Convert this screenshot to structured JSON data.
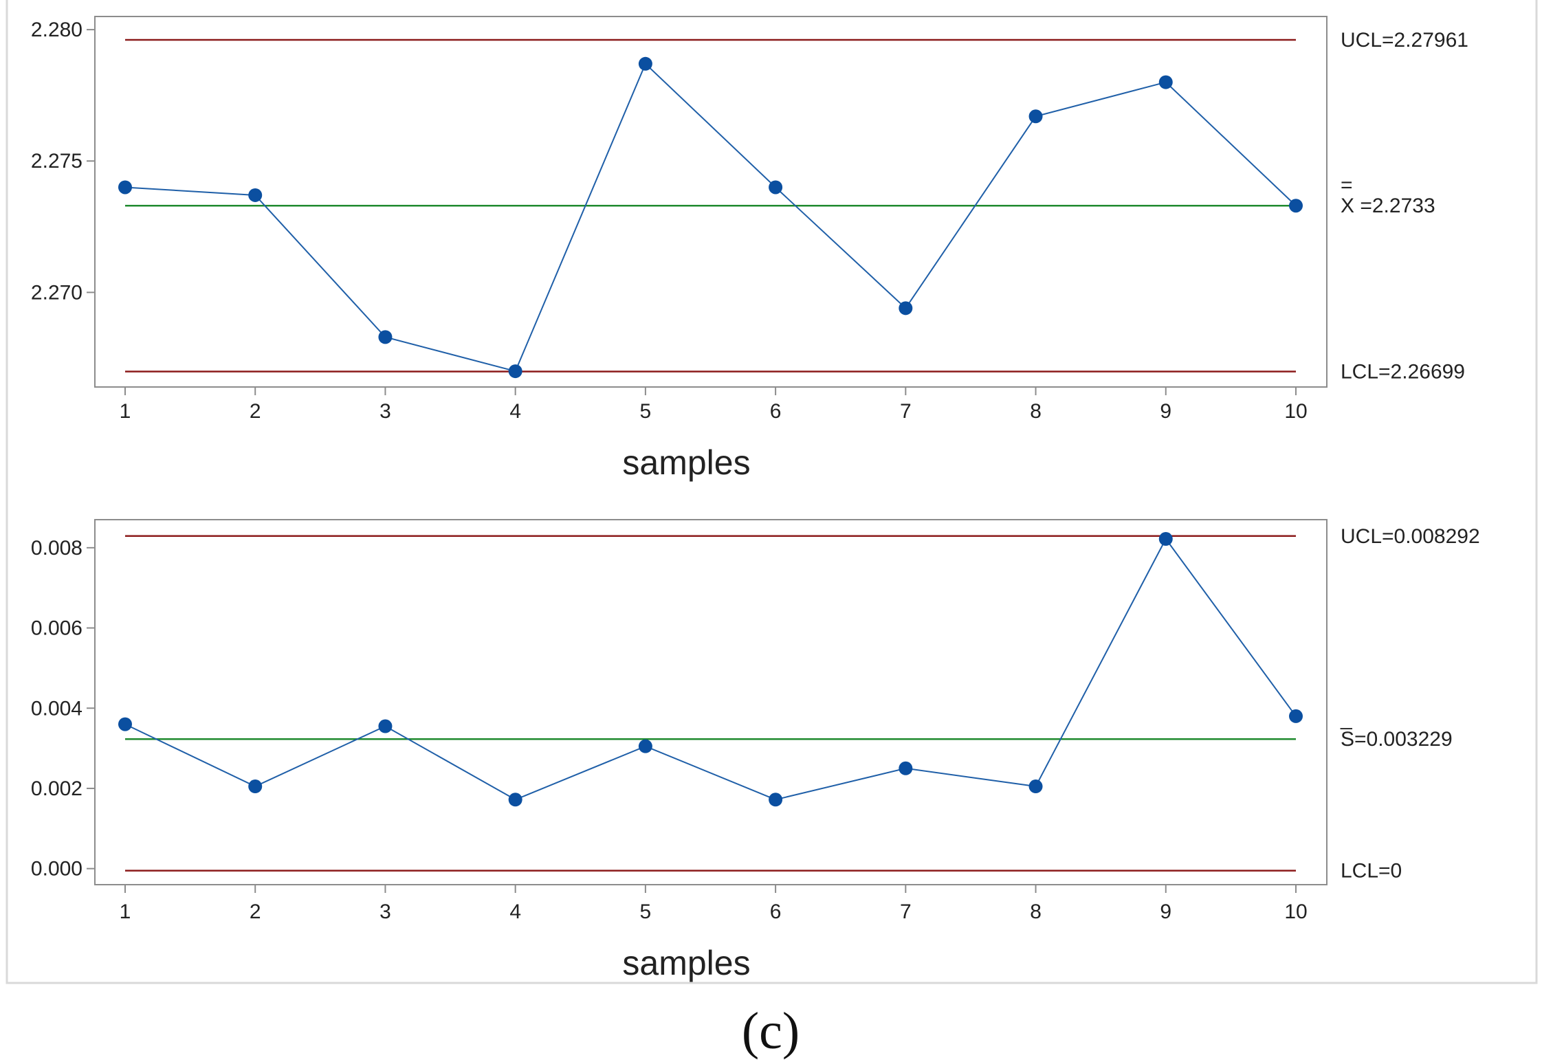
{
  "chart_data": [
    {
      "type": "line",
      "xlabel": "samples",
      "ylabel": "",
      "categories": [
        "1",
        "2",
        "3",
        "4",
        "5",
        "6",
        "7",
        "8",
        "9",
        "10"
      ],
      "y_ticks": [
        "2.270",
        "2.275",
        "2.280"
      ],
      "ylim": [
        2.2664,
        2.2805
      ],
      "series": [
        {
          "values": [
            2.274,
            2.2737,
            2.2683,
            2.267,
            2.2787,
            2.274,
            2.2694,
            2.2767,
            2.278,
            2.2733
          ]
        }
      ],
      "ref_lines": [
        {
          "value": 2.27961,
          "label": "UCL=2.27961",
          "color": "#8b1a1a"
        },
        {
          "value": 2.2733,
          "label_bar": "=",
          "label": "X =2.2733",
          "color": "#1f8a2e"
        },
        {
          "value": 2.26699,
          "label": "LCL=2.26699",
          "color": "#8b1a1a"
        }
      ],
      "line_color": "#1f5fa8",
      "marker_color": "#0b4fa0",
      "grid": false
    },
    {
      "type": "line",
      "xlabel": "samples",
      "ylabel": "",
      "categories": [
        "1",
        "2",
        "3",
        "4",
        "5",
        "6",
        "7",
        "8",
        "9",
        "10"
      ],
      "y_ticks": [
        "0.000",
        "0.002",
        "0.004",
        "0.006",
        "0.008"
      ],
      "ylim": [
        -0.0004,
        0.0087
      ],
      "series": [
        {
          "values": [
            0.0036,
            0.00205,
            0.00355,
            0.00172,
            0.00305,
            0.00172,
            0.0025,
            0.00205,
            0.00822,
            0.0038
          ]
        }
      ],
      "ref_lines": [
        {
          "value": 0.008292,
          "label": "UCL=0.008292",
          "color": "#8b1a1a"
        },
        {
          "value": 0.003229,
          "label_bar": "_",
          "label": "S=0.003229",
          "color": "#1f8a2e"
        },
        {
          "value": -5e-05,
          "label": "LCL=0",
          "color": "#8b1a1a"
        }
      ],
      "line_color": "#1f5fa8",
      "marker_color": "#0b4fa0",
      "grid": false
    }
  ],
  "caption": "(c)"
}
